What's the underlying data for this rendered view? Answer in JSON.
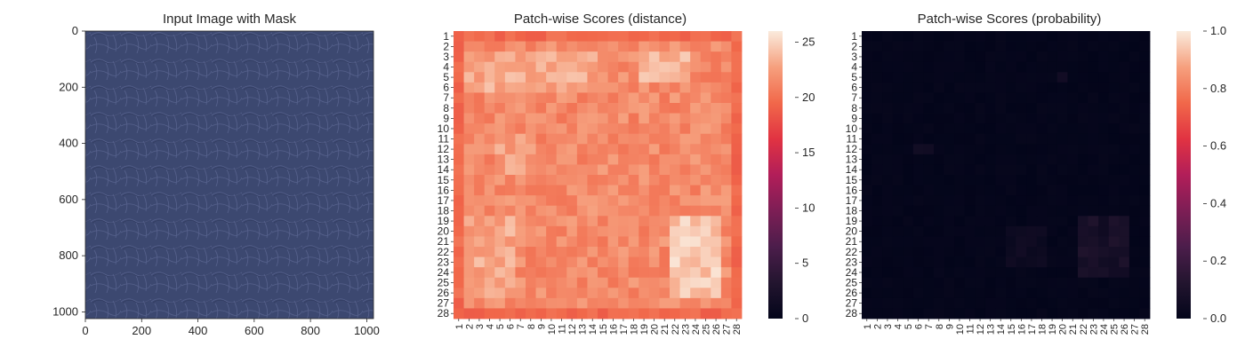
{
  "chart_data": [
    {
      "type": "image",
      "title": "Input Image with Mask",
      "xticks": [
        0,
        200,
        400,
        600,
        800,
        1000
      ],
      "yticks": [
        0,
        200,
        400,
        600,
        800,
        1000
      ],
      "xlim": [
        0,
        1024
      ],
      "ylim": [
        1024,
        0
      ],
      "image_color": "#3c4870"
    },
    {
      "type": "heatmap",
      "title": "Patch-wise Scores (distance)",
      "rows": [
        "1",
        "2",
        "3",
        "4",
        "5",
        "6",
        "7",
        "8",
        "9",
        "10",
        "11",
        "12",
        "13",
        "14",
        "15",
        "16",
        "17",
        "18",
        "19",
        "20",
        "21",
        "22",
        "23",
        "24",
        "25",
        "26",
        "27",
        "28"
      ],
      "cols": [
        "1",
        "2",
        "3",
        "4",
        "5",
        "6",
        "7",
        "8",
        "9",
        "10",
        "11",
        "12",
        "13",
        "14",
        "15",
        "16",
        "17",
        "18",
        "19",
        "20",
        "21",
        "22",
        "23",
        "24",
        "25",
        "26",
        "27",
        "28"
      ],
      "colorbar": {
        "min": 0,
        "max": 26,
        "ticks": [
          0,
          5,
          10,
          15,
          20,
          25
        ]
      },
      "value_range": [
        0,
        26
      ],
      "hot_regions": [
        {
          "rows": [
            19,
            26
          ],
          "cols": [
            22,
            26
          ],
          "value": 24.5
        },
        {
          "rows": [
            19,
            26
          ],
          "cols": [
            2,
            6
          ],
          "value": 23.0
        },
        {
          "rows": [
            3,
            6
          ],
          "cols": [
            2,
            14
          ],
          "value": 23.0
        },
        {
          "rows": [
            3,
            5
          ],
          "cols": [
            19,
            23
          ],
          "value": 23.5
        },
        {
          "rows": [
            11,
            14
          ],
          "cols": [
            5,
            8
          ],
          "value": 22.5
        }
      ],
      "border_value": 19.5,
      "interior_value": 21.5
    },
    {
      "type": "heatmap",
      "title": "Patch-wise Scores (probability)",
      "rows": [
        "1",
        "2",
        "3",
        "4",
        "5",
        "6",
        "7",
        "8",
        "9",
        "10",
        "11",
        "12",
        "13",
        "14",
        "15",
        "16",
        "17",
        "18",
        "19",
        "20",
        "21",
        "22",
        "23",
        "24",
        "25",
        "26",
        "27",
        "28"
      ],
      "cols": [
        "1",
        "2",
        "3",
        "4",
        "5",
        "6",
        "7",
        "8",
        "9",
        "10",
        "11",
        "12",
        "13",
        "14",
        "15",
        "16",
        "17",
        "18",
        "19",
        "20",
        "21",
        "22",
        "23",
        "24",
        "25",
        "26",
        "27",
        "28"
      ],
      "colorbar": {
        "min": 0.0,
        "max": 1.0,
        "ticks": [
          "0.0",
          "0.2",
          "0.4",
          "0.6",
          "0.8",
          "1.0"
        ]
      },
      "value_range": [
        0,
        1
      ],
      "hot_regions": [
        {
          "rows": [
            19,
            24
          ],
          "cols": [
            22,
            26
          ],
          "value": 0.11
        },
        {
          "rows": [
            20,
            23
          ],
          "cols": [
            15,
            18
          ],
          "value": 0.06
        },
        {
          "rows": [
            12,
            12
          ],
          "cols": [
            6,
            7
          ],
          "value": 0.07
        },
        {
          "rows": [
            5,
            5
          ],
          "cols": [
            20,
            20
          ],
          "value": 0.06
        }
      ],
      "background_value": 0.0
    }
  ]
}
